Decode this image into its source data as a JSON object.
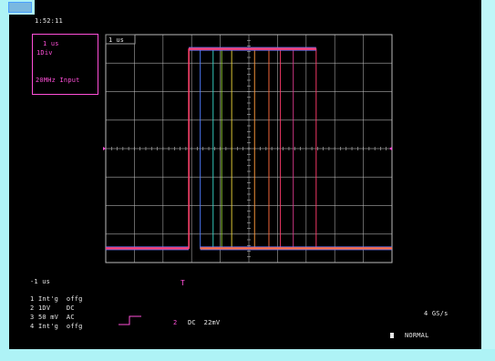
{
  "header": {
    "timestamp": "1:52:11"
  },
  "waveform_box": {
    "label": "1 us"
  },
  "channel_box": {
    "line1": "1 us",
    "line2": "1Div",
    "line3": "20MHz Input"
  },
  "trigger": {
    "marker": "T",
    "position_label": "-1 us"
  },
  "channels": [
    {
      "label": "1",
      "coupling": "Int'g  offg",
      "color": "#ffffff"
    },
    {
      "label": "2",
      "coupling": "1DV    DC",
      "color": "#ffffff"
    },
    {
      "label": "3",
      "coupling": "50 mV  AC",
      "color": "#ffffff"
    },
    {
      "label": "4",
      "coupling": "Int'g  offg",
      "color": "#ffffff"
    }
  ],
  "trigger_info": {
    "channel": "2",
    "text": "DC  22mV"
  },
  "right_readouts": {
    "sample_rate": "4 GS/s",
    "mode": "NORMAL"
  },
  "colors": {
    "grid": "#bdbdbd",
    "trace_main": "#ff3b6b",
    "trace_blue": "#6a78ff",
    "accent": "#ff4fd8"
  },
  "waveform": {
    "low_level_div": -3.5,
    "high_level_div": 3.5,
    "rise_time_div": -2.1,
    "fall_times_div": [
      -1.7,
      -1.25,
      -0.95,
      -0.6,
      0.2,
      0.7,
      1.1,
      1.55,
      2.35
    ]
  }
}
